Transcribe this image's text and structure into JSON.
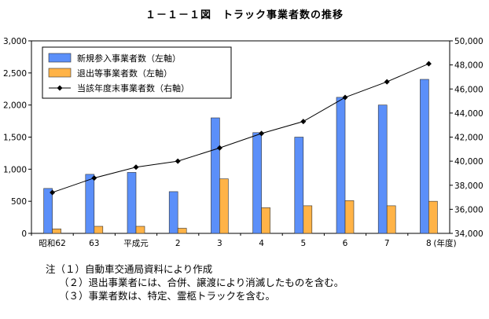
{
  "title": "１－１－１図　トラック事業者数の推移",
  "chart_data": {
    "type": "bar",
    "categories": [
      "昭和62",
      "63",
      "平成元",
      "2",
      "3",
      "4",
      "5",
      "6",
      "7",
      "8"
    ],
    "x_unit": "(年度)",
    "series": [
      {
        "name": "新規参入事業者数（左軸）",
        "type": "bar",
        "axis": "left",
        "color": "#5b8ff9",
        "values": [
          700,
          920,
          950,
          650,
          1800,
          1570,
          1500,
          2120,
          2000,
          2400
        ]
      },
      {
        "name": "退出等事業者数（左軸）",
        "type": "bar",
        "axis": "left",
        "color": "#ffb347",
        "values": [
          70,
          110,
          110,
          80,
          850,
          400,
          430,
          510,
          430,
          500
        ]
      },
      {
        "name": "当該年度末事業者数（右軸）",
        "type": "line",
        "axis": "right",
        "color": "#000000",
        "values": [
          37400,
          38600,
          39500,
          40000,
          41100,
          42300,
          43300,
          45300,
          46600,
          48100
        ]
      }
    ],
    "left_axis": {
      "min": 0,
      "max": 3000,
      "ticks": [
        "0",
        "500",
        "1,000",
        "1,500",
        "2,000",
        "2,500",
        "3,000"
      ]
    },
    "right_axis": {
      "min": 34000,
      "max": 50000,
      "ticks": [
        "34,000",
        "36,000",
        "38,000",
        "40,000",
        "42,000",
        "44,000",
        "46,000",
        "48,000",
        "50,000"
      ]
    },
    "legend": "top-left",
    "grid": false
  },
  "notes": [
    "注（１）自動車交通局資料により作成",
    "（２）退出事業者には、合併、譲渡により消滅したものを含む。",
    "（３）事業者数は、特定、霊柩トラックを含む。"
  ]
}
